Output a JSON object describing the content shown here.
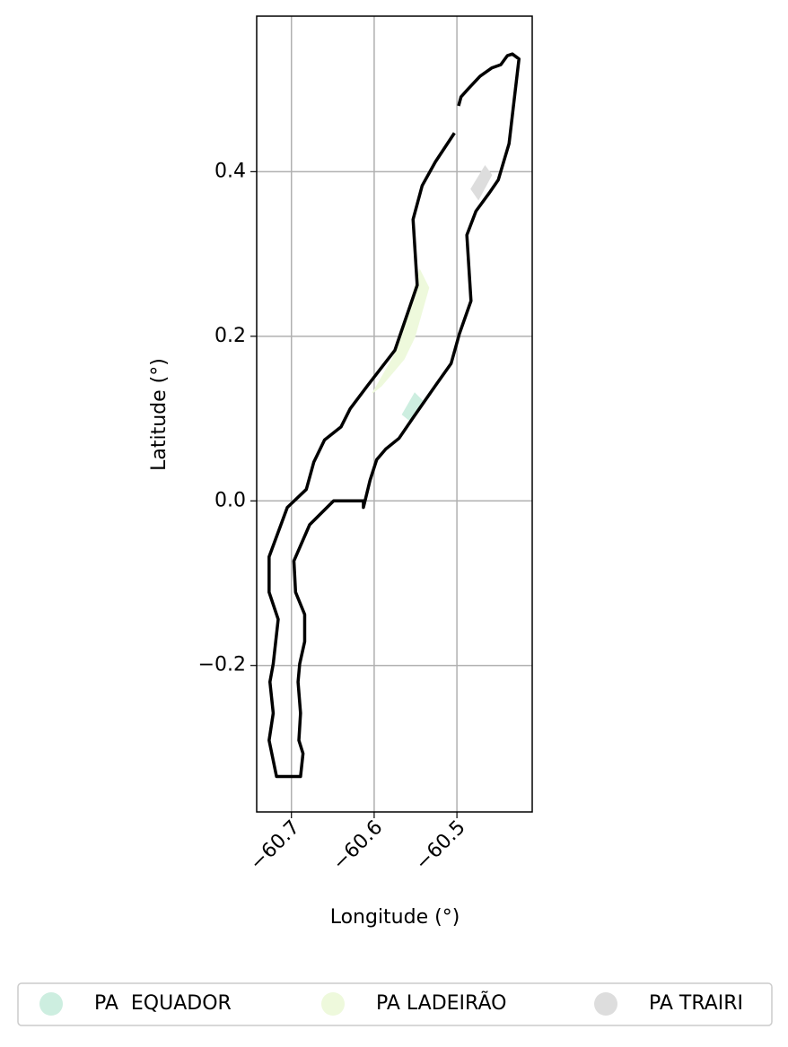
{
  "chart_data": {
    "type": "map",
    "xlabel": "Longitude (°)",
    "ylabel": "Latitude (°)",
    "xlim": [
      -60.742,
      -60.409
    ],
    "ylim": [
      -0.378,
      0.589
    ],
    "xticks": [
      {
        "value": -60.7,
        "label": "−60.7"
      },
      {
        "value": -60.6,
        "label": "−60.6"
      },
      {
        "value": -60.5,
        "label": "−60.5"
      }
    ],
    "yticks": [
      {
        "value": -0.2,
        "label": "−0.2"
      },
      {
        "value": 0.0,
        "label": "0.0"
      },
      0.2,
      0.4
    ],
    "grid": true,
    "legend": "lower center",
    "boundary": {
      "color": "#000000",
      "lon": [
        -60.503,
        -60.526,
        -60.542,
        -60.553,
        -60.548,
        -60.575,
        -60.608,
        -60.629,
        -60.64,
        -60.66,
        -60.673,
        -60.682,
        -60.705,
        -60.727,
        -60.727,
        -60.716,
        -60.722,
        -60.726,
        -60.722,
        -60.727,
        -60.718,
        -60.689,
        -60.686,
        -60.691,
        -60.689,
        -60.692,
        -60.69,
        -60.684,
        -60.684,
        -60.695,
        -60.697,
        -60.678,
        -60.664,
        -60.649,
        -60.613,
        -60.613,
        -60.605,
        -60.597,
        -60.586,
        -60.57,
        -60.553,
        -60.526,
        -60.507,
        -60.497,
        -60.483,
        -60.488,
        -60.477,
        -60.461,
        -60.45,
        -60.437,
        -60.432,
        -60.425,
        -60.433,
        -60.439,
        -60.447,
        -60.458,
        -60.472,
        -60.486,
        -60.495,
        -60.498
      ],
      "lat": [
        0.447,
        0.412,
        0.383,
        0.342,
        0.262,
        0.183,
        0.14,
        0.112,
        0.09,
        0.074,
        0.047,
        0.014,
        -0.008,
        -0.068,
        -0.111,
        -0.144,
        -0.198,
        -0.22,
        -0.258,
        -0.291,
        -0.335,
        -0.335,
        -0.307,
        -0.291,
        -0.258,
        -0.22,
        -0.198,
        -0.171,
        -0.138,
        -0.111,
        -0.073,
        -0.029,
        -0.015,
        0.0,
        0.0,
        -0.008,
        0.025,
        0.05,
        0.063,
        0.076,
        0.101,
        0.14,
        0.167,
        0.203,
        0.243,
        0.323,
        0.352,
        0.374,
        0.39,
        0.434,
        0.477,
        0.537,
        0.543,
        0.541,
        0.53,
        0.526,
        0.516,
        0.501,
        0.491,
        0.48
      ]
    },
    "series": [
      {
        "name": "PA  EQUADOR",
        "color": "#cdeee0",
        "lon": [
          -60.566,
          -60.551,
          -60.54,
          -60.555
        ],
        "lat": [
          0.105,
          0.131,
          0.12,
          0.096
        ]
      },
      {
        "name": "PA LADEIRÃO",
        "color": "#eef9dc",
        "lon": [
          -60.602,
          -60.575,
          -60.559,
          -60.545,
          -60.534,
          -60.551,
          -60.564,
          -60.591
        ],
        "lat": [
          0.131,
          0.178,
          0.232,
          0.281,
          0.259,
          0.199,
          0.172,
          0.14
        ]
      },
      {
        "name": "PA TRAIRI",
        "color": "#dddddd",
        "lon": [
          -60.483,
          -60.466,
          -60.458,
          -60.474
        ],
        "lat": [
          0.379,
          0.407,
          0.396,
          0.366
        ]
      }
    ]
  }
}
